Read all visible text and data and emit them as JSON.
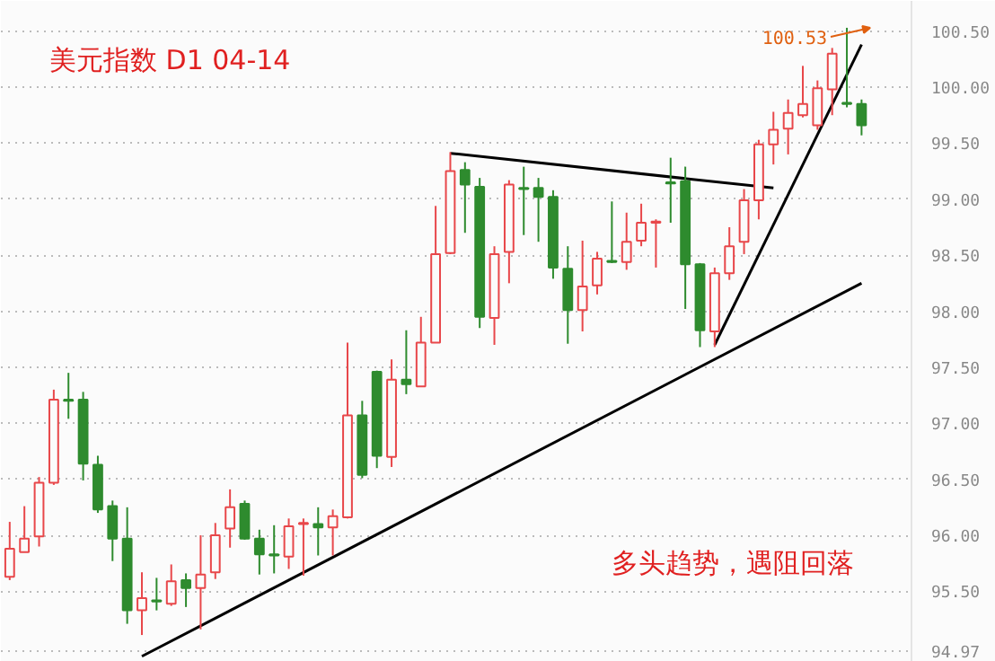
{
  "chart_data": {
    "type": "candlestick",
    "title": "美元指数  D1  04-14",
    "categories": [
      null,
      null,
      null,
      null,
      null,
      null,
      null,
      null,
      null,
      null,
      null,
      null,
      null,
      null,
      null,
      null,
      null,
      null,
      null,
      null,
      null,
      null,
      null,
      null,
      null,
      null,
      null,
      null,
      null,
      null,
      null,
      null,
      null,
      null,
      null,
      null,
      null,
      null,
      null,
      null,
      null,
      null,
      null,
      null,
      null,
      null,
      null,
      null,
      null,
      null,
      null,
      null,
      null,
      null,
      null,
      null,
      null,
      null,
      null
    ],
    "ohlc": [
      [
        95.63,
        96.12,
        95.6,
        95.88
      ],
      [
        95.85,
        96.26,
        95.85,
        95.97
      ],
      [
        95.99,
        96.52,
        95.9,
        96.47
      ],
      [
        96.47,
        97.3,
        96.45,
        97.21
      ],
      [
        97.21,
        97.45,
        97.04,
        97.2
      ],
      [
        97.21,
        97.28,
        96.49,
        96.64
      ],
      [
        96.63,
        96.71,
        96.2,
        96.23
      ],
      [
        96.26,
        96.31,
        95.77,
        95.97
      ],
      [
        95.97,
        96.25,
        95.21,
        95.33
      ],
      [
        95.33,
        95.67,
        95.11,
        95.44
      ],
      [
        95.42,
        95.62,
        95.33,
        95.41
      ],
      [
        95.39,
        95.74,
        95.37,
        95.59
      ],
      [
        95.6,
        95.66,
        95.36,
        95.53
      ],
      [
        95.53,
        96.0,
        95.16,
        95.65
      ],
      [
        95.67,
        96.11,
        95.61,
        96.0
      ],
      [
        96.06,
        96.41,
        95.89,
        96.25
      ],
      [
        96.28,
        96.31,
        95.96,
        95.97
      ],
      [
        95.97,
        96.05,
        95.65,
        95.83
      ],
      [
        95.83,
        96.09,
        95.66,
        95.82
      ],
      [
        95.81,
        96.15,
        95.7,
        96.08
      ],
      [
        96.1,
        96.15,
        95.64,
        96.11
      ],
      [
        96.1,
        96.25,
        95.82,
        96.07
      ],
      [
        96.07,
        96.23,
        95.82,
        96.17
      ],
      [
        96.16,
        97.72,
        96.15,
        97.07
      ],
      [
        97.07,
        97.2,
        96.51,
        96.54
      ],
      [
        97.46,
        97.47,
        96.6,
        96.71
      ],
      [
        96.7,
        97.57,
        96.61,
        97.39
      ],
      [
        97.39,
        97.83,
        97.26,
        97.35
      ],
      [
        97.33,
        97.95,
        97.33,
        97.72
      ],
      [
        97.72,
        98.94,
        97.72,
        98.51
      ],
      [
        98.52,
        99.42,
        98.51,
        99.25
      ],
      [
        99.26,
        99.33,
        98.7,
        99.13
      ],
      [
        99.11,
        99.19,
        97.85,
        97.95
      ],
      [
        97.94,
        98.58,
        97.7,
        98.51
      ],
      [
        98.53,
        99.17,
        98.25,
        99.13
      ],
      [
        99.1,
        99.29,
        98.68,
        99.09
      ],
      [
        99.1,
        99.19,
        98.62,
        99.02
      ],
      [
        99.02,
        99.08,
        98.29,
        98.39
      ],
      [
        98.38,
        98.58,
        97.71,
        98.01
      ],
      [
        98.01,
        98.63,
        97.82,
        98.22
      ],
      [
        98.23,
        98.53,
        98.15,
        98.47
      ],
      [
        98.45,
        98.98,
        98.43,
        98.44
      ],
      [
        98.44,
        98.88,
        98.37,
        98.62
      ],
      [
        98.63,
        98.96,
        98.58,
        98.79
      ],
      [
        98.79,
        98.82,
        98.39,
        98.8
      ],
      [
        99.15,
        99.37,
        98.79,
        99.14
      ],
      [
        99.16,
        99.29,
        98.02,
        98.42
      ],
      [
        98.42,
        98.43,
        97.68,
        97.83
      ],
      [
        97.82,
        98.39,
        97.68,
        98.34
      ],
      [
        98.34,
        98.75,
        98.28,
        98.58
      ],
      [
        98.62,
        99.09,
        98.51,
        98.99
      ],
      [
        98.99,
        99.53,
        98.82,
        99.49
      ],
      [
        99.49,
        99.78,
        99.31,
        99.62
      ],
      [
        99.63,
        99.89,
        99.4,
        99.77
      ],
      [
        99.75,
        100.19,
        99.73,
        99.85
      ],
      [
        99.66,
        100.06,
        99.62,
        99.99
      ],
      [
        99.98,
        100.35,
        99.75,
        100.3
      ],
      [
        99.86,
        100.53,
        99.82,
        99.85
      ],
      [
        99.85,
        99.89,
        99.57,
        99.66
      ]
    ],
    "colors": [
      "#e8474a",
      "#e8474a",
      "#e8474a",
      "#e8474a",
      "#2e8b2e",
      "#2e8b2e",
      "#2e8b2e",
      "#2e8b2e",
      "#2e8b2e",
      "#e8474a",
      "#2e8b2e",
      "#e8474a",
      "#2e8b2e",
      "#e8474a",
      "#e8474a",
      "#e8474a",
      "#2e8b2e",
      "#2e8b2e",
      "#2e8b2e",
      "#e8474a",
      "#e8474a",
      "#2e8b2e",
      "#e8474a",
      "#e8474a",
      "#2e8b2e",
      "#2e8b2e",
      "#e8474a",
      "#2e8b2e",
      "#e8474a",
      "#e8474a",
      "#e8474a",
      "#2e8b2e",
      "#2e8b2e",
      "#e8474a",
      "#e8474a",
      "#2e8b2e",
      "#2e8b2e",
      "#2e8b2e",
      "#2e8b2e",
      "#e8474a",
      "#e8474a",
      "#2e8b2e",
      "#e8474a",
      "#e8474a",
      "#e8474a",
      "#2e8b2e",
      "#2e8b2e",
      "#2e8b2e",
      "#e8474a",
      "#e8474a",
      "#e8474a",
      "#e8474a",
      "#e8474a",
      "#e8474a",
      "#e8474a",
      "#e8474a",
      "#e8474a",
      "#2e8b2e",
      "#2e8b2e"
    ],
    "series": [
      {
        "type": "line",
        "color": "#000000",
        "values": [
          null,
          null,
          null,
          null,
          null,
          null,
          null,
          null,
          null,
          94.92,
          null,
          null,
          null,
          null,
          null,
          null,
          null,
          null,
          null,
          null,
          null,
          null,
          null,
          null,
          null,
          null,
          null,
          null,
          null,
          null,
          null,
          null,
          null,
          null,
          null,
          null,
          null,
          null,
          null,
          null,
          null,
          null,
          null,
          null,
          null,
          null,
          null,
          null,
          null,
          null,
          null,
          null,
          null,
          null,
          null,
          null,
          null,
          null,
          98.25
        ]
      },
      {
        "type": "line",
        "color": "#000000",
        "values": [
          null,
          null,
          null,
          null,
          null,
          null,
          null,
          null,
          null,
          null,
          null,
          null,
          null,
          null,
          null,
          null,
          null,
          null,
          null,
          null,
          null,
          null,
          null,
          null,
          null,
          null,
          null,
          null,
          null,
          null,
          99.41,
          null,
          null,
          null,
          null,
          null,
          null,
          null,
          null,
          null,
          null,
          null,
          null,
          null,
          null,
          null,
          null,
          null,
          null,
          null,
          null,
          null,
          99.1,
          null,
          null,
          null,
          null,
          null,
          null
        ]
      },
      {
        "type": "line",
        "color": "#000000",
        "values": [
          null,
          null,
          null,
          null,
          null,
          null,
          null,
          null,
          null,
          null,
          null,
          null,
          null,
          null,
          null,
          null,
          null,
          null,
          null,
          null,
          null,
          null,
          null,
          null,
          null,
          null,
          null,
          null,
          null,
          null,
          null,
          null,
          null,
          null,
          null,
          null,
          null,
          null,
          null,
          null,
          null,
          null,
          null,
          null,
          null,
          null,
          null,
          null,
          97.7,
          null,
          null,
          null,
          null,
          null,
          null,
          null,
          null,
          null,
          100.38
        ]
      }
    ],
    "ylim": [
      94.87,
      100.77
    ],
    "yticks": [
      {
        "value": 94.97,
        "label": "94.97"
      },
      {
        "value": 95.5,
        "label": "95.50"
      },
      {
        "value": 96.0,
        "label": "96.00"
      },
      {
        "value": 96.5,
        "label": "96.50"
      },
      {
        "value": 97.0,
        "label": "97.00"
      },
      {
        "value": 97.5,
        "label": "97.50"
      },
      {
        "value": 98.0,
        "label": "98.00"
      },
      {
        "value": 98.5,
        "label": "98.50"
      },
      {
        "value": 99.0,
        "label": "99.00"
      },
      {
        "value": 99.5,
        "label": "99.50"
      },
      {
        "value": 100.0,
        "label": "100.00"
      },
      {
        "value": 100.5,
        "label": "100.50"
      }
    ],
    "tick_labels": "y",
    "grid": "y",
    "annotations": [
      "100.53",
      "多头趋势，遇阻回落"
    ]
  }
}
